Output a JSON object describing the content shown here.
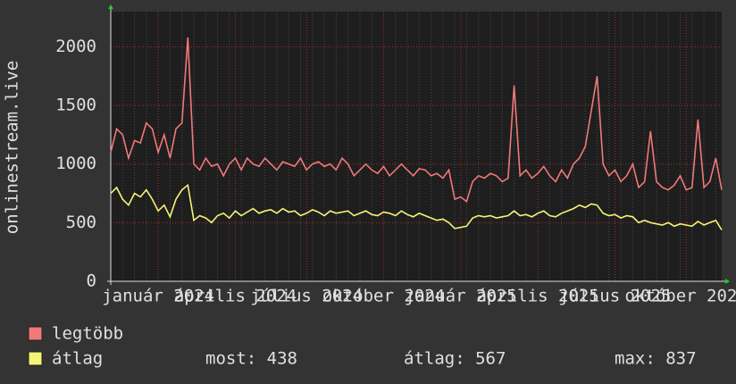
{
  "chart_data": {
    "type": "line",
    "y_label": "onlinestream.live",
    "categories": [
      null,
      null,
      null,
      null,
      null,
      null,
      null,
      null,
      "január 2024",
      null,
      null,
      null,
      null,
      null,
      null,
      null,
      null,
      null,
      null,
      null,
      null,
      "április 2024",
      null,
      null,
      null,
      null,
      null,
      null,
      null,
      null,
      null,
      null,
      null,
      "július 2024",
      null,
      null,
      null,
      null,
      null,
      null,
      null,
      null,
      null,
      null,
      null,
      null,
      "október 2024",
      null,
      null,
      null,
      null,
      null,
      null,
      null,
      null,
      null,
      null,
      null,
      null,
      "január 2025",
      null,
      null,
      null,
      null,
      null,
      null,
      null,
      null,
      null,
      null,
      null,
      null,
      "április 2025",
      null,
      null,
      null,
      null,
      null,
      null,
      null,
      null,
      null,
      null,
      null,
      null,
      "július 2025",
      null,
      null,
      null,
      null,
      null,
      null,
      null,
      null,
      null,
      null,
      null,
      "október 2025",
      null,
      null,
      null,
      null,
      null,
      null
    ],
    "series": [
      {
        "name": "legtöbb",
        "color": "#f07878",
        "values": [
          1100,
          1300,
          1250,
          1050,
          1200,
          1180,
          1350,
          1300,
          1100,
          1250,
          1050,
          1300,
          1350,
          2080,
          1000,
          950,
          1050,
          980,
          1000,
          900,
          1000,
          1050,
          950,
          1050,
          1000,
          980,
          1050,
          1000,
          950,
          1020,
          1000,
          980,
          1050,
          950,
          1000,
          1020,
          980,
          1000,
          950,
          1050,
          1000,
          900,
          950,
          1000,
          950,
          920,
          980,
          900,
          950,
          1000,
          950,
          900,
          960,
          950,
          900,
          920,
          880,
          950,
          700,
          720,
          680,
          850,
          900,
          880,
          920,
          900,
          850,
          880,
          1670,
          900,
          950,
          880,
          920,
          980,
          900,
          850,
          950,
          880,
          1000,
          1050,
          1150,
          1450,
          1750,
          1000,
          900,
          950,
          850,
          900,
          1000,
          800,
          850,
          1280,
          850,
          800,
          780,
          820,
          900,
          780,
          800,
          1380,
          800,
          850,
          1050,
          780
        ]
      },
      {
        "name": "átlag",
        "color": "#f4f478",
        "values": [
          750,
          800,
          700,
          650,
          750,
          720,
          780,
          700,
          600,
          650,
          550,
          700,
          780,
          820,
          520,
          560,
          540,
          500,
          560,
          580,
          540,
          600,
          560,
          590,
          620,
          580,
          600,
          610,
          580,
          620,
          590,
          600,
          560,
          580,
          610,
          590,
          560,
          600,
          580,
          590,
          600,
          560,
          580,
          600,
          570,
          560,
          590,
          580,
          560,
          600,
          570,
          550,
          580,
          560,
          540,
          520,
          530,
          500,
          450,
          460,
          470,
          540,
          560,
          550,
          560,
          540,
          550,
          560,
          600,
          560,
          570,
          550,
          580,
          600,
          560,
          550,
          580,
          600,
          620,
          650,
          630,
          660,
          650,
          580,
          560,
          570,
          540,
          560,
          550,
          500,
          520,
          500,
          490,
          480,
          500,
          470,
          490,
          480,
          470,
          510,
          480,
          500,
          520,
          438
        ]
      }
    ],
    "stats": [
      "most: 438",
      "átlag: 567",
      "max: 837"
    ],
    "ylim": [
      0,
      2300
    ],
    "yticks": [
      0,
      500,
      1000,
      1500,
      2000
    ],
    "grid": true
  }
}
